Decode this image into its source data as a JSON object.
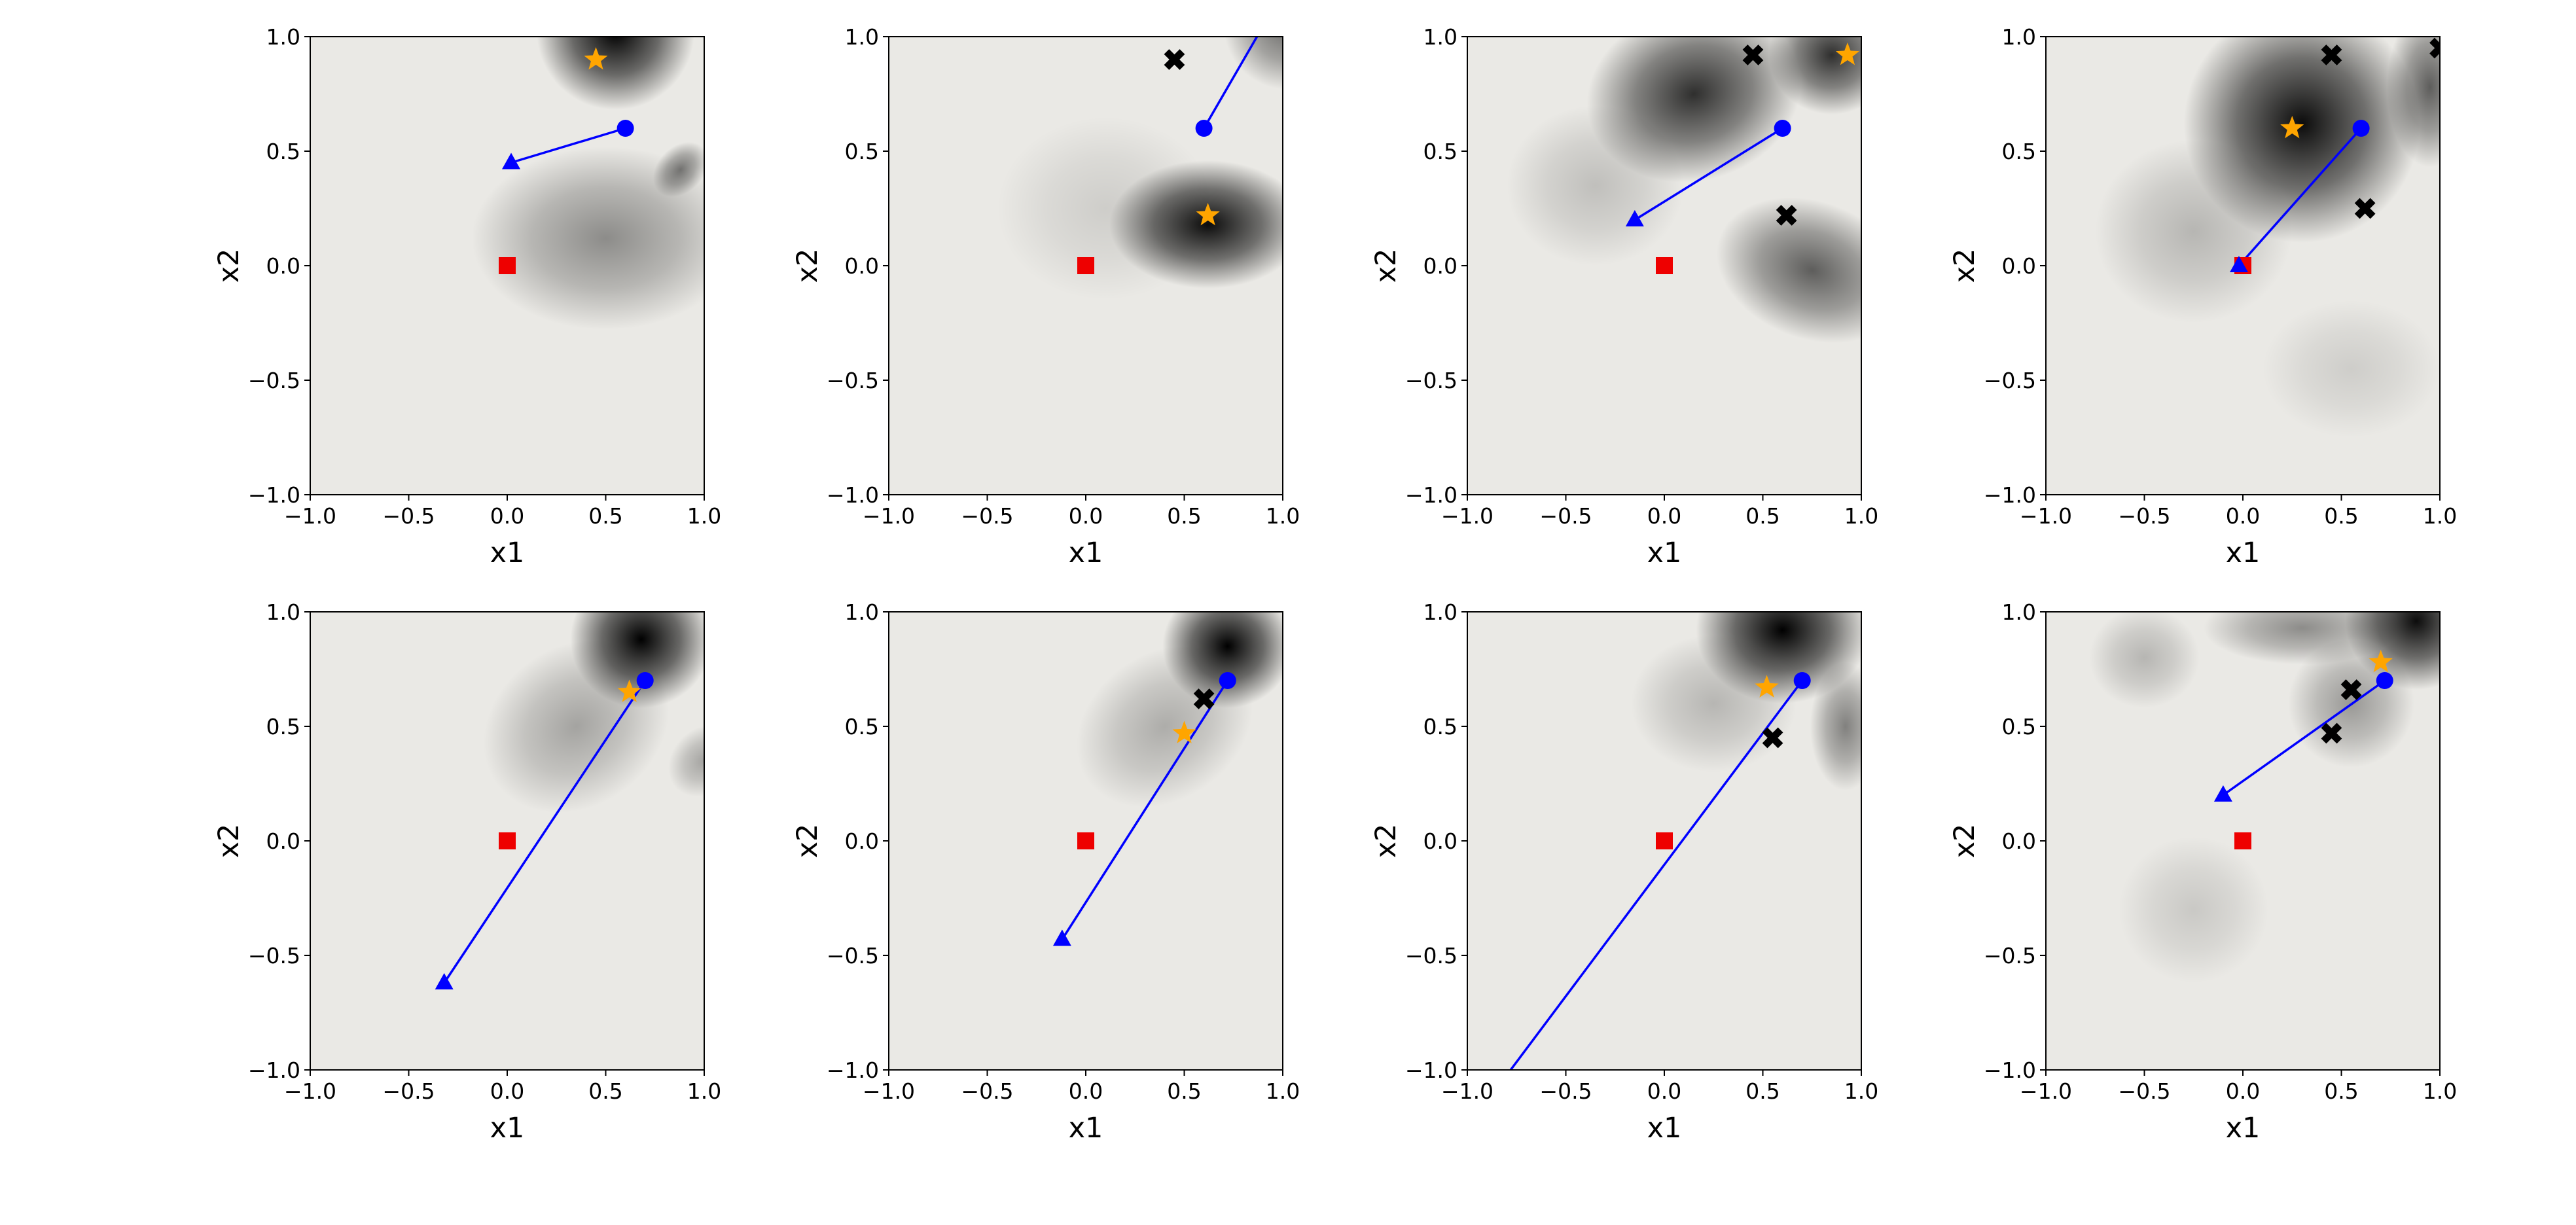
{
  "figure": {
    "background": "#ffffff",
    "plot_bg": "#eae9e5",
    "colors": {
      "star": "#FFA500",
      "circle": "#0000FF",
      "triangle": "#0000FF",
      "square": "#EE0000",
      "cross": "#000000",
      "line": "#0000FF",
      "axis": "#000000"
    },
    "xtick_labels": [
      "−1.0",
      "−0.5",
      "0.0",
      "0.5",
      "1.0"
    ],
    "ytick_labels": [
      "−1.0",
      "−0.5",
      "0.0",
      "0.5",
      "1.0"
    ]
  },
  "chart_data": [
    {
      "type": "heatmap",
      "xlabel": "x1",
      "ylabel": "x2",
      "xlim": [
        -1,
        1
      ],
      "ylim": [
        -1,
        1
      ],
      "xticks": [
        -1.0,
        -0.5,
        0.0,
        0.5,
        1.0
      ],
      "yticks": [
        -1.0,
        -0.5,
        0.0,
        0.5,
        1.0
      ],
      "markers": {
        "stars": [
          [
            0.45,
            0.9
          ]
        ],
        "circles": [
          [
            0.6,
            0.6
          ]
        ],
        "triangles": [
          [
            0.02,
            0.45
          ]
        ],
        "squares": [
          [
            0.0,
            0.0
          ]
        ],
        "crosses": []
      },
      "lines": [
        [
          [
            0.02,
            0.45
          ],
          [
            0.6,
            0.6
          ]
        ]
      ],
      "density_blobs": [
        {
          "x": 0.55,
          "y": 1.02,
          "rx": 0.4,
          "ry": 0.34,
          "a": 1.0,
          "rot": 0
        },
        {
          "x": 0.5,
          "y": 0.12,
          "rx": 0.68,
          "ry": 0.4,
          "a": 0.4,
          "rot": 0
        },
        {
          "x": 0.88,
          "y": 0.42,
          "rx": 0.16,
          "ry": 0.1,
          "a": 0.5,
          "rot": -45
        }
      ]
    },
    {
      "type": "heatmap",
      "xlabel": "x1",
      "ylabel": "x2",
      "xlim": [
        -1,
        1
      ],
      "ylim": [
        -1,
        1
      ],
      "xticks": [
        -1.0,
        -0.5,
        0.0,
        0.5,
        1.0
      ],
      "yticks": [
        -1.0,
        -0.5,
        0.0,
        0.5,
        1.0
      ],
      "markers": {
        "stars": [
          [
            0.62,
            0.22
          ]
        ],
        "circles": [
          [
            0.6,
            0.6
          ]
        ],
        "triangles": [],
        "squares": [
          [
            0.0,
            0.0
          ]
        ],
        "crosses": [
          [
            0.45,
            0.9
          ]
        ]
      },
      "lines": [
        [
          [
            0.6,
            0.6
          ],
          [
            0.95,
            1.12
          ]
        ]
      ],
      "density_blobs": [
        {
          "x": 0.62,
          "y": 0.18,
          "rx": 0.5,
          "ry": 0.28,
          "a": 0.95,
          "rot": 0
        },
        {
          "x": 1.02,
          "y": 1.05,
          "rx": 0.32,
          "ry": 0.28,
          "a": 0.55,
          "rot": 0
        },
        {
          "x": 0.1,
          "y": 0.25,
          "rx": 0.55,
          "ry": 0.4,
          "a": 0.12,
          "rot": 0
        }
      ]
    },
    {
      "type": "heatmap",
      "xlabel": "x1",
      "ylabel": "x2",
      "xlim": [
        -1,
        1
      ],
      "ylim": [
        -1,
        1
      ],
      "xticks": [
        -1.0,
        -0.5,
        0.0,
        0.5,
        1.0
      ],
      "yticks": [
        -1.0,
        -0.5,
        0.0,
        0.5,
        1.0
      ],
      "markers": {
        "stars": [
          [
            0.93,
            0.92
          ]
        ],
        "circles": [
          [
            0.6,
            0.6
          ]
        ],
        "triangles": [
          [
            -0.15,
            0.2
          ]
        ],
        "squares": [
          [
            0.0,
            0.0
          ]
        ],
        "crosses": [
          [
            0.45,
            0.92
          ],
          [
            0.62,
            0.22
          ]
        ]
      },
      "lines": [
        [
          [
            -0.15,
            0.2
          ],
          [
            0.6,
            0.6
          ]
        ]
      ],
      "density_blobs": [
        {
          "x": 0.15,
          "y": 0.75,
          "rx": 0.55,
          "ry": 0.38,
          "a": 0.8,
          "rot": -15
        },
        {
          "x": 0.85,
          "y": 0.92,
          "rx": 0.32,
          "ry": 0.26,
          "a": 0.8,
          "rot": 0
        },
        {
          "x": 0.75,
          "y": -0.02,
          "rx": 0.5,
          "ry": 0.3,
          "a": 0.6,
          "rot": 20
        },
        {
          "x": -0.35,
          "y": 0.35,
          "rx": 0.45,
          "ry": 0.35,
          "a": 0.18,
          "rot": 0
        }
      ]
    },
    {
      "type": "heatmap",
      "xlabel": "x1",
      "ylabel": "x2",
      "xlim": [
        -1,
        1
      ],
      "ylim": [
        -1,
        1
      ],
      "xticks": [
        -1.0,
        -0.5,
        0.0,
        0.5,
        1.0
      ],
      "yticks": [
        -1.0,
        -0.5,
        0.0,
        0.5,
        1.0
      ],
      "markers": {
        "stars": [
          [
            0.25,
            0.6
          ]
        ],
        "circles": [
          [
            0.6,
            0.6
          ]
        ],
        "triangles": [
          [
            -0.02,
            0.0
          ]
        ],
        "squares": [
          [
            0.0,
            0.0
          ]
        ],
        "crosses": [
          [
            0.45,
            0.92
          ],
          [
            0.62,
            0.25
          ],
          [
            1.0,
            0.95
          ]
        ]
      },
      "lines": [
        [
          [
            -0.02,
            0.0
          ],
          [
            0.6,
            0.6
          ]
        ]
      ],
      "density_blobs": [
        {
          "x": 0.3,
          "y": 0.62,
          "rx": 0.6,
          "ry": 0.52,
          "a": 0.95,
          "rot": 0
        },
        {
          "x": 0.95,
          "y": 0.78,
          "rx": 0.22,
          "ry": 0.35,
          "a": 0.6,
          "rot": 0
        },
        {
          "x": -0.25,
          "y": 0.15,
          "rx": 0.5,
          "ry": 0.4,
          "a": 0.22,
          "rot": 0
        },
        {
          "x": 0.55,
          "y": -0.45,
          "rx": 0.45,
          "ry": 0.3,
          "a": 0.12,
          "rot": 0
        }
      ]
    },
    {
      "type": "heatmap",
      "xlabel": "x1",
      "ylabel": "x2",
      "xlim": [
        -1,
        1
      ],
      "ylim": [
        -1,
        1
      ],
      "xticks": [
        -1.0,
        -0.5,
        0.0,
        0.5,
        1.0
      ],
      "yticks": [
        -1.0,
        -0.5,
        0.0,
        0.5,
        1.0
      ],
      "markers": {
        "stars": [
          [
            0.62,
            0.65
          ]
        ],
        "circles": [
          [
            0.7,
            0.7
          ]
        ],
        "triangles": [
          [
            -0.32,
            -0.62
          ]
        ],
        "squares": [
          [
            0.0,
            0.0
          ]
        ],
        "crosses": []
      },
      "lines": [
        [
          [
            -0.32,
            -0.62
          ],
          [
            0.7,
            0.7
          ]
        ]
      ],
      "density_blobs": [
        {
          "x": 0.68,
          "y": 0.88,
          "rx": 0.36,
          "ry": 0.3,
          "a": 1.0,
          "rot": 0
        },
        {
          "x": 0.35,
          "y": 0.5,
          "rx": 0.5,
          "ry": 0.35,
          "a": 0.3,
          "rot": -35
        },
        {
          "x": 1.0,
          "y": 0.35,
          "rx": 0.2,
          "ry": 0.14,
          "a": 0.3,
          "rot": -45
        }
      ]
    },
    {
      "type": "heatmap",
      "xlabel": "x1",
      "ylabel": "x2",
      "xlim": [
        -1,
        1
      ],
      "ylim": [
        -1,
        1
      ],
      "xticks": [
        -1.0,
        -0.5,
        0.0,
        0.5,
        1.0
      ],
      "yticks": [
        -1.0,
        -0.5,
        0.0,
        0.5,
        1.0
      ],
      "markers": {
        "stars": [
          [
            0.5,
            0.47
          ]
        ],
        "circles": [
          [
            0.72,
            0.7
          ]
        ],
        "triangles": [
          [
            -0.12,
            -0.43
          ]
        ],
        "squares": [
          [
            0.0,
            0.0
          ]
        ],
        "crosses": [
          [
            0.6,
            0.62
          ]
        ]
      },
      "lines": [
        [
          [
            -0.12,
            -0.43
          ],
          [
            0.72,
            0.7
          ]
        ]
      ],
      "density_blobs": [
        {
          "x": 0.72,
          "y": 0.85,
          "rx": 0.33,
          "ry": 0.27,
          "a": 1.0,
          "rot": 0
        },
        {
          "x": 0.4,
          "y": 0.5,
          "rx": 0.48,
          "ry": 0.32,
          "a": 0.26,
          "rot": -35
        }
      ]
    },
    {
      "type": "heatmap",
      "xlabel": "x1",
      "ylabel": "x2",
      "xlim": [
        -1,
        1
      ],
      "ylim": [
        -1,
        1
      ],
      "xticks": [
        -1.0,
        -0.5,
        0.0,
        0.5,
        1.0
      ],
      "yticks": [
        -1.0,
        -0.5,
        0.0,
        0.5,
        1.0
      ],
      "markers": {
        "stars": [
          [
            0.52,
            0.67
          ]
        ],
        "circles": [
          [
            0.7,
            0.7
          ]
        ],
        "triangles": [],
        "squares": [
          [
            0.0,
            0.0
          ]
        ],
        "crosses": [
          [
            0.55,
            0.45
          ]
        ]
      },
      "lines": [
        [
          [
            -0.85,
            -1.08
          ],
          [
            0.7,
            0.7
          ]
        ]
      ],
      "density_blobs": [
        {
          "x": 0.6,
          "y": 0.92,
          "rx": 0.44,
          "ry": 0.32,
          "a": 1.0,
          "rot": 0
        },
        {
          "x": 0.92,
          "y": 0.5,
          "rx": 0.18,
          "ry": 0.28,
          "a": 0.45,
          "rot": 0
        },
        {
          "x": 0.25,
          "y": 0.6,
          "rx": 0.42,
          "ry": 0.3,
          "a": 0.22,
          "rot": 0
        }
      ]
    },
    {
      "type": "heatmap",
      "xlabel": "x1",
      "ylabel": "x2",
      "xlim": [
        -1,
        1
      ],
      "ylim": [
        -1,
        1
      ],
      "xticks": [
        -1.0,
        -0.5,
        0.0,
        0.5,
        1.0
      ],
      "yticks": [
        -1.0,
        -0.5,
        0.0,
        0.5,
        1.0
      ],
      "markers": {
        "stars": [
          [
            0.7,
            0.78
          ]
        ],
        "circles": [
          [
            0.72,
            0.7
          ]
        ],
        "triangles": [
          [
            -0.1,
            0.2
          ]
        ],
        "squares": [
          [
            0.0,
            0.0
          ]
        ],
        "crosses": [
          [
            0.55,
            0.66
          ],
          [
            0.45,
            0.47
          ]
        ]
      },
      "lines": [
        [
          [
            -0.1,
            0.2
          ],
          [
            0.72,
            0.7
          ]
        ]
      ],
      "density_blobs": [
        {
          "x": 0.88,
          "y": 0.96,
          "rx": 0.36,
          "ry": 0.3,
          "a": 0.95,
          "rot": 0
        },
        {
          "x": 0.3,
          "y": 0.93,
          "rx": 0.5,
          "ry": 0.16,
          "a": 0.4,
          "rot": 0
        },
        {
          "x": 0.55,
          "y": 0.6,
          "rx": 0.32,
          "ry": 0.28,
          "a": 0.35,
          "rot": 0
        },
        {
          "x": -0.5,
          "y": 0.8,
          "rx": 0.28,
          "ry": 0.22,
          "a": 0.22,
          "rot": 0
        },
        {
          "x": -0.25,
          "y": -0.3,
          "rx": 0.38,
          "ry": 0.32,
          "a": 0.14,
          "rot": 0
        }
      ]
    }
  ]
}
